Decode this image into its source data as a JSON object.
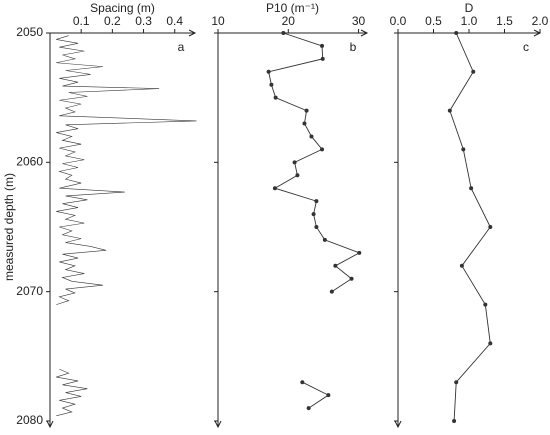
{
  "chart_data": [
    {
      "type": "line",
      "title": "Spacing (m)",
      "label": "a",
      "ylabel": "measured depth (m)",
      "color": "#333333",
      "markers": false,
      "x": [
        2050.2,
        2050.5,
        2050.8,
        2051.1,
        2051.4,
        2051.7,
        2052.0,
        2052.3,
        2052.6,
        2052.9,
        2053.2,
        2053.5,
        2053.8,
        2054.1,
        2054.3,
        2054.6,
        2054.9,
        2055.2,
        2055.5,
        2055.8,
        2056.1,
        2056.4,
        2056.8,
        2057.1,
        2057.4,
        2057.7,
        2058.0,
        2058.3,
        2058.6,
        2058.9,
        2059.2,
        2059.5,
        2059.8,
        2060.1,
        2060.4,
        2060.7,
        2061.0,
        2061.3,
        2061.6,
        2062.0,
        2062.3,
        2062.6,
        2062.9,
        2063.2,
        2063.5,
        2063.8,
        2064.1,
        2064.4,
        2064.7,
        2065.0,
        2065.3,
        2065.6,
        2065.9,
        2066.2,
        2066.5,
        2066.8,
        2067.1,
        2067.4,
        2067.7,
        2068.0,
        2068.3,
        2068.6,
        2068.9,
        2069.2,
        2069.5,
        2069.8,
        2070.1,
        2070.4,
        2070.7,
        2071.0,
        2073.5,
        2076.0,
        2076.3,
        2076.6,
        2076.9,
        2077.2,
        2077.5,
        2077.8,
        2078.1,
        2078.4,
        2078.7,
        2079.0,
        2079.3,
        2079.6
      ],
      "values": [
        0.06,
        0.02,
        0.09,
        0.03,
        0.11,
        0.04,
        0.08,
        0.02,
        0.17,
        0.05,
        0.13,
        0.03,
        0.09,
        0.04,
        0.35,
        0.06,
        0.12,
        0.03,
        0.1,
        0.05,
        0.08,
        0.03,
        0.47,
        0.05,
        0.09,
        0.02,
        0.07,
        0.04,
        0.1,
        0.03,
        0.08,
        0.05,
        0.11,
        0.04,
        0.09,
        0.03,
        0.07,
        0.05,
        0.1,
        0.03,
        0.24,
        0.05,
        0.12,
        0.04,
        0.09,
        0.02,
        0.08,
        0.05,
        0.11,
        0.03,
        0.07,
        0.04,
        0.1,
        0.05,
        0.13,
        0.18,
        0.04,
        0.09,
        0.03,
        0.08,
        0.05,
        0.11,
        0.04,
        0.07,
        0.17,
        0.05,
        0.08,
        0.03,
        0.06,
        0.02,
        null,
        0.03,
        0.06,
        0.02,
        0.09,
        0.04,
        0.12,
        0.05,
        0.1,
        0.03,
        0.08,
        0.04,
        0.07,
        0.02
      ],
      "xlim": [
        0,
        0.465
      ],
      "xticks": [
        0.1,
        0.2,
        0.3,
        0.4
      ],
      "ylim": [
        2050,
        2080
      ],
      "yticks": [
        2050,
        2060,
        2070,
        2080
      ]
    },
    {
      "type": "line",
      "title": "P10 (m⁻¹)",
      "label": "b",
      "color": "#333333",
      "markers": true,
      "x": [
        2050,
        2051,
        2052,
        2053,
        2054,
        2055,
        2056,
        2057,
        2058,
        2059,
        2060,
        2061,
        2062,
        2063,
        2064,
        2065,
        2066,
        2067,
        2068,
        2069,
        2070,
        2074,
        2077,
        2078,
        2079
      ],
      "values": [
        19.3,
        24.8,
        24.9,
        17.2,
        17.6,
        18.2,
        22.6,
        22.3,
        23.3,
        24.8,
        20.9,
        21.3,
        18.1,
        24.0,
        23.6,
        24.0,
        25.2,
        30.1,
        26.7,
        29.0,
        26.2,
        null,
        22.0,
        25.7,
        22.9
      ],
      "xlim": [
        10,
        31.2
      ],
      "xticks": [
        10,
        20,
        30
      ],
      "ylim": [
        2050,
        2080
      ],
      "yticks": [
        2050,
        2060,
        2070,
        2080
      ]
    },
    {
      "type": "line",
      "title": "D",
      "label": "c",
      "color": "#333333",
      "markers": true,
      "x": [
        2050,
        2053,
        2056,
        2059,
        2062,
        2065,
        2068,
        2071,
        2074,
        2077,
        2080
      ],
      "values": [
        0.82,
        1.06,
        0.73,
        0.92,
        1.03,
        1.3,
        0.9,
        1.23,
        1.3,
        0.82,
        0.79
      ],
      "xlim": [
        0,
        2.0
      ],
      "xticks": [
        {
          "value": 0,
          "label": "0.0"
        },
        0.5,
        {
          "value": 1,
          "label": "1.0"
        },
        1.5,
        {
          "value": 2,
          "label": "2.0"
        }
      ],
      "ylim": [
        2050,
        2080
      ],
      "yticks": [
        2050,
        2060,
        2070,
        2080
      ]
    }
  ]
}
